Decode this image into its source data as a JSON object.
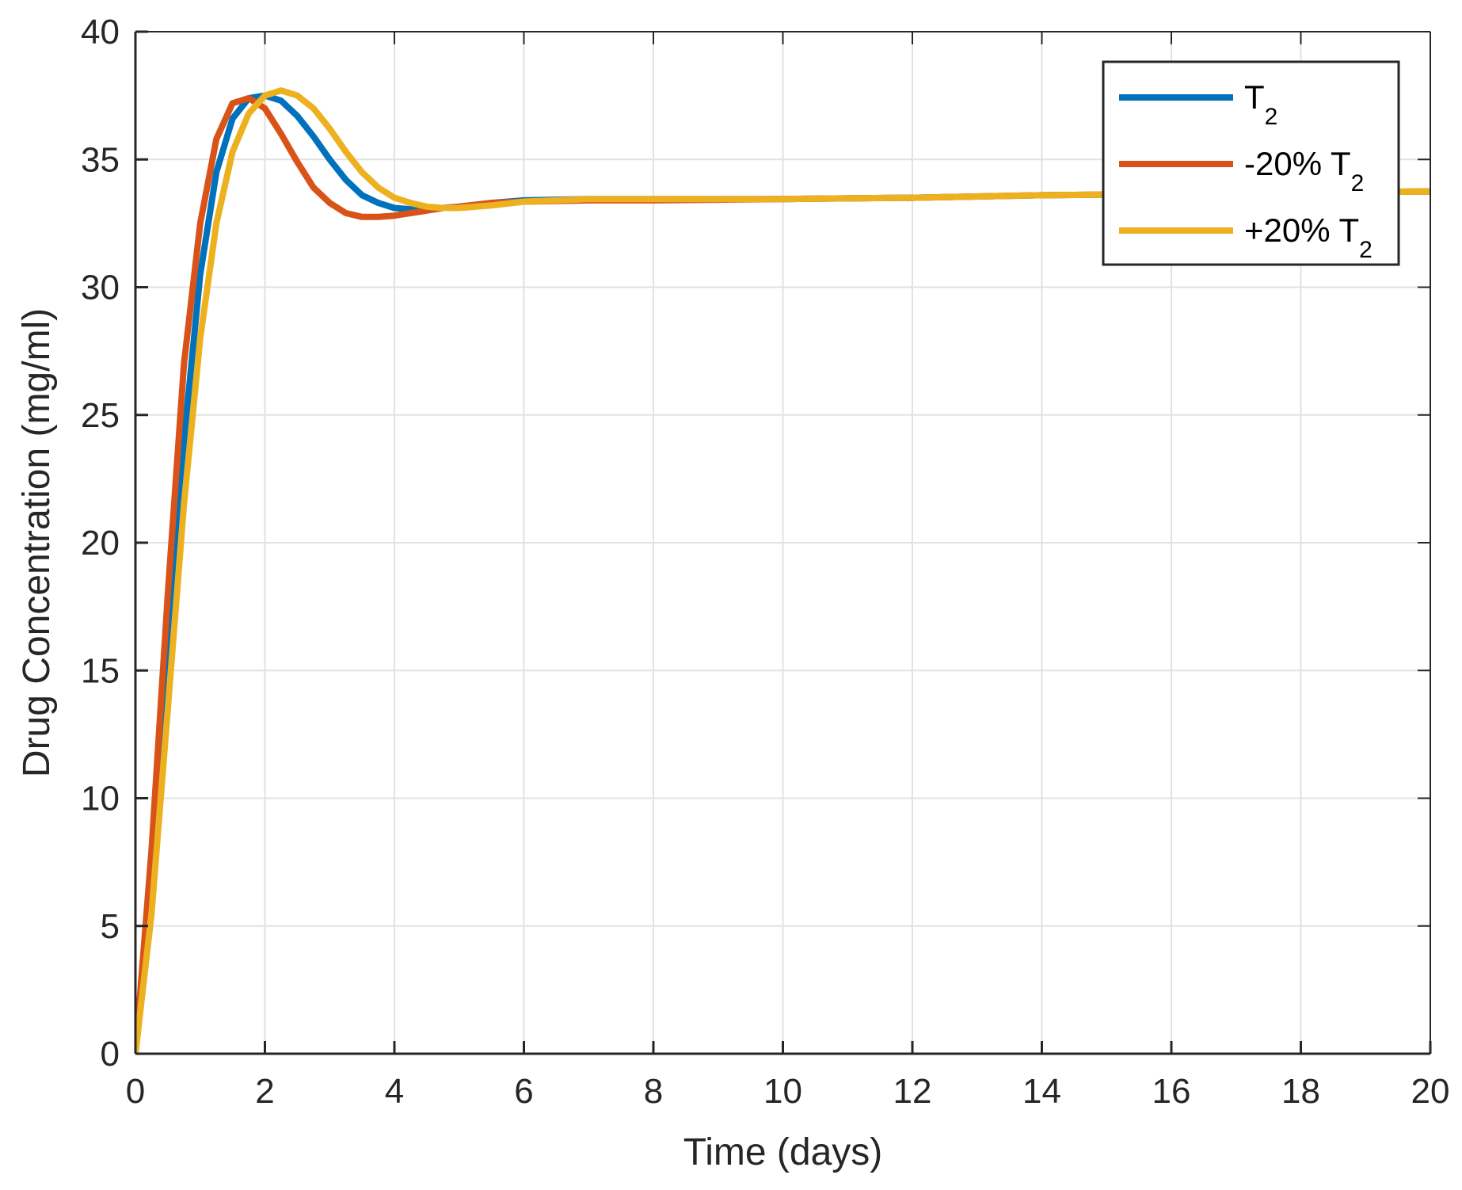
{
  "chart_data": {
    "type": "line",
    "xlabel": "Time (days)",
    "ylabel": "Drug Concentration (mg/ml)",
    "xlim": [
      0,
      20
    ],
    "ylim": [
      0,
      40
    ],
    "xticks": [
      0,
      2,
      4,
      6,
      8,
      10,
      12,
      14,
      16,
      18,
      20
    ],
    "yticks": [
      0,
      5,
      10,
      15,
      20,
      25,
      30,
      35,
      40
    ],
    "grid": true,
    "legend_position": "top-right",
    "series": [
      {
        "name": "T2",
        "legend": {
          "main": "T",
          "sub": "2"
        },
        "color": "#0072BD",
        "x": [
          0,
          0.25,
          0.5,
          0.75,
          1.0,
          1.25,
          1.5,
          1.75,
          2.0,
          2.25,
          2.5,
          2.75,
          3.0,
          3.25,
          3.5,
          3.75,
          4.0,
          4.25,
          4.5,
          4.75,
          5.0,
          5.5,
          6,
          7,
          8,
          10,
          12,
          14,
          16,
          18,
          20
        ],
        "y": [
          0,
          6.5,
          15.5,
          24.0,
          30.5,
          34.5,
          36.6,
          37.4,
          37.5,
          37.3,
          36.7,
          35.9,
          35.0,
          34.2,
          33.6,
          33.3,
          33.1,
          33.05,
          33.05,
          33.1,
          33.15,
          33.3,
          33.4,
          33.45,
          33.45,
          33.45,
          33.5,
          33.6,
          33.65,
          33.7,
          33.75
        ]
      },
      {
        "name": "-20% T2",
        "legend": {
          "main": "-20% T",
          "sub": "2"
        },
        "color": "#D95319",
        "x": [
          0,
          0.25,
          0.5,
          0.75,
          1.0,
          1.25,
          1.5,
          1.75,
          2.0,
          2.25,
          2.5,
          2.75,
          3.0,
          3.25,
          3.5,
          3.75,
          4.0,
          4.25,
          4.5,
          4.75,
          5.0,
          5.5,
          6,
          7,
          8,
          10,
          12,
          14,
          16,
          18,
          20
        ],
        "y": [
          0,
          8.0,
          18.0,
          27.0,
          32.5,
          35.8,
          37.2,
          37.4,
          37.0,
          36.0,
          34.9,
          33.9,
          33.3,
          32.9,
          32.75,
          32.75,
          32.8,
          32.9,
          33.0,
          33.1,
          33.15,
          33.3,
          33.35,
          33.4,
          33.4,
          33.45,
          33.5,
          33.6,
          33.65,
          33.7,
          33.75
        ]
      },
      {
        "name": "+20% T2",
        "legend": {
          "main": "+20% T",
          "sub": "2"
        },
        "color": "#EDB120",
        "x": [
          0,
          0.25,
          0.5,
          0.75,
          1.0,
          1.25,
          1.5,
          1.75,
          2.0,
          2.25,
          2.5,
          2.75,
          3.0,
          3.25,
          3.5,
          3.75,
          4.0,
          4.25,
          4.5,
          4.75,
          5.0,
          5.5,
          6,
          7,
          8,
          10,
          12,
          14,
          16,
          18,
          20
        ],
        "y": [
          0,
          5.5,
          13.5,
          21.5,
          28.0,
          32.5,
          35.3,
          36.8,
          37.5,
          37.7,
          37.5,
          37.0,
          36.2,
          35.3,
          34.5,
          33.9,
          33.5,
          33.3,
          33.15,
          33.1,
          33.1,
          33.2,
          33.35,
          33.45,
          33.45,
          33.45,
          33.5,
          33.6,
          33.65,
          33.7,
          33.75
        ]
      }
    ]
  }
}
